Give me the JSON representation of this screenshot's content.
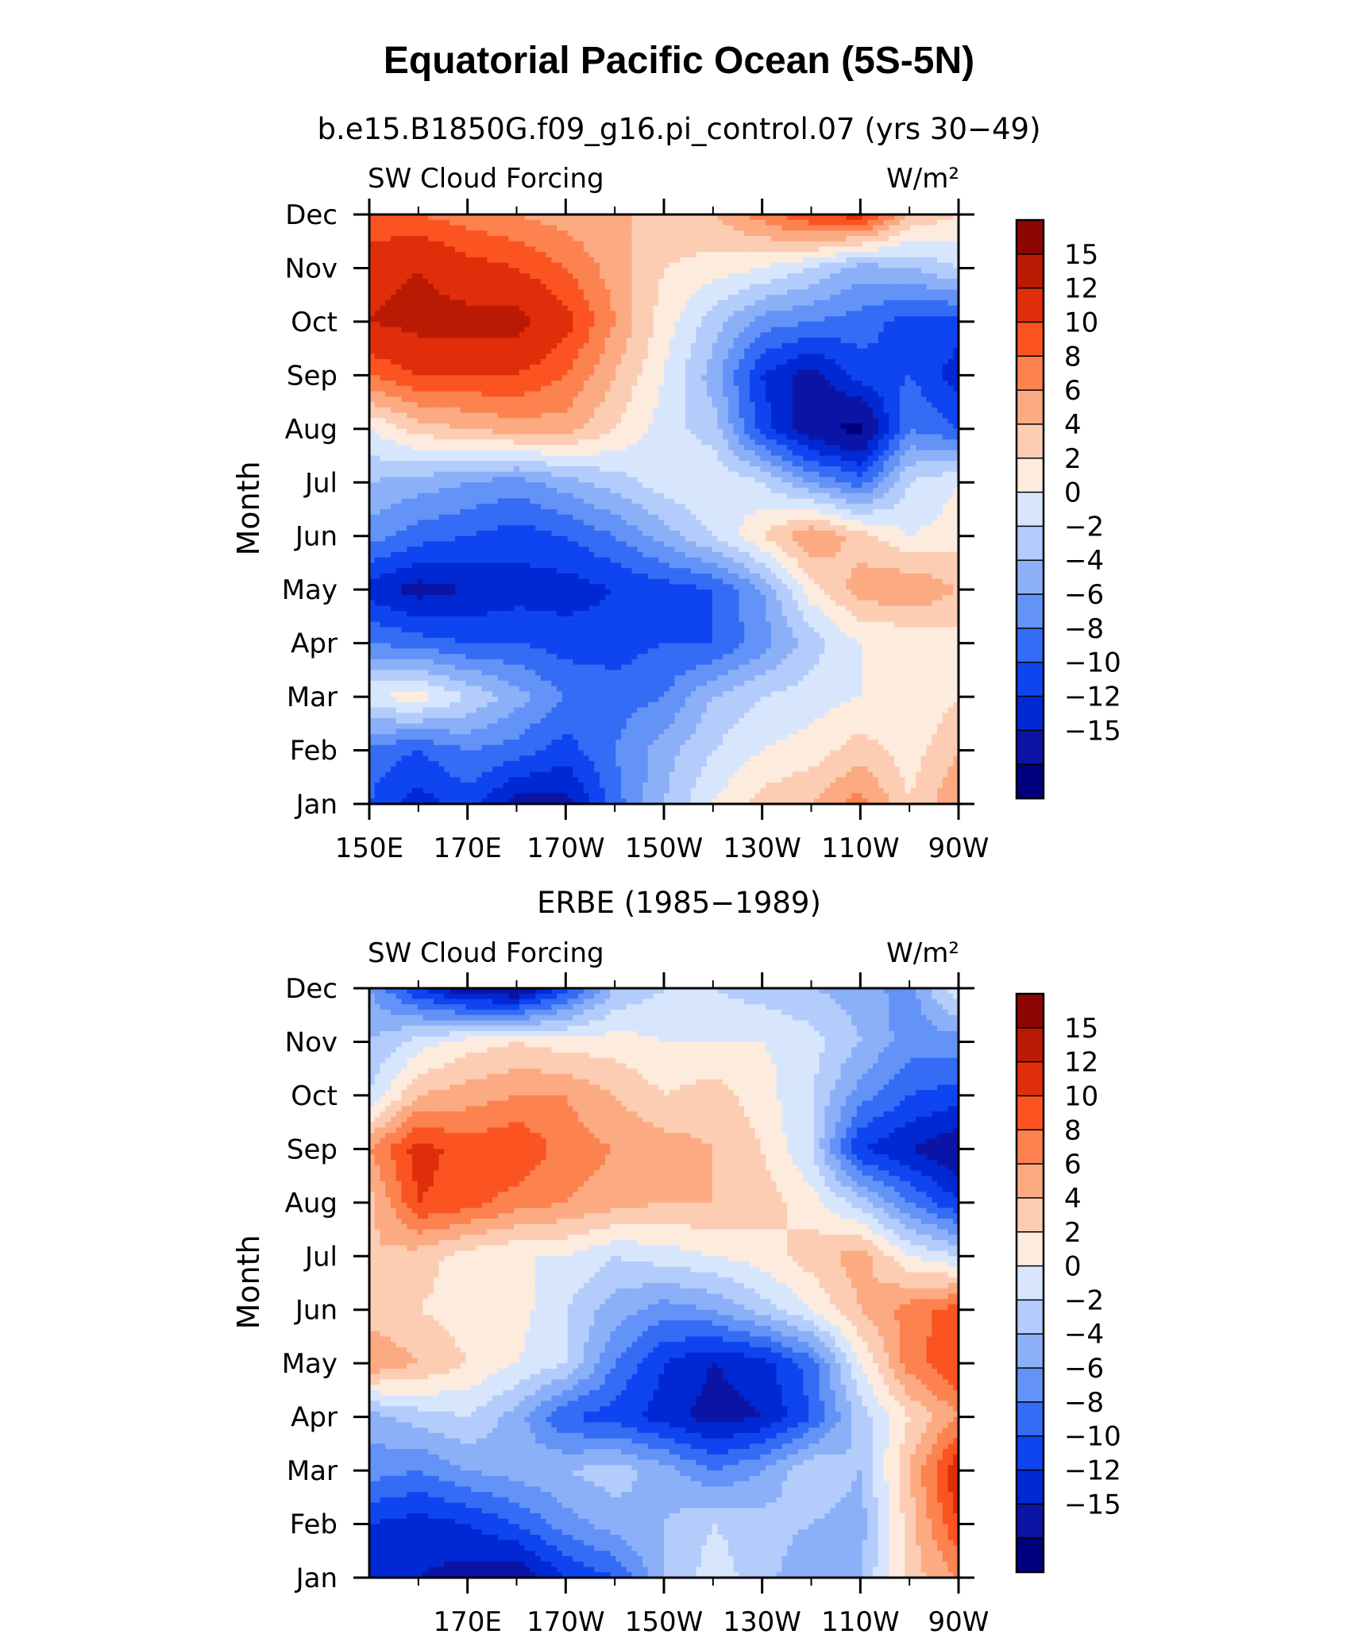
{
  "figure": {
    "title": "Equatorial Pacific Ocean (5S-5N)"
  },
  "chart_data": [
    {
      "type": "heatmap",
      "title": "b.e15.B1850G.f09_g16.pi_control.07 (yrs 30−49)",
      "left_label": "SW Cloud Forcing",
      "right_label": "W/m²",
      "ylabel": "Month",
      "x_ticks": [
        "150E",
        "170E",
        "170W",
        "150W",
        "130W",
        "110W",
        "90W"
      ],
      "x_tick_lon": [
        150,
        170,
        190,
        210,
        230,
        250,
        270
      ],
      "xlim": [
        150,
        270
      ],
      "y_ticks": [
        "Jan",
        "Feb",
        "Mar",
        "Apr",
        "May",
        "Jun",
        "Jul",
        "Aug",
        "Sep",
        "Oct",
        "Nov",
        "Dec"
      ],
      "colorbar": {
        "labels": [
          "15",
          "12",
          "10",
          "8",
          "6",
          "4",
          "2",
          "0",
          "−2",
          "−4",
          "−6",
          "−8",
          "−10",
          "−12",
          "−15"
        ]
      },
      "x_lon": [
        150,
        160,
        170,
        180,
        190,
        200,
        210,
        220,
        230,
        240,
        250,
        260,
        270
      ],
      "z": [
        [
          -8,
          -11,
          -9,
          -13,
          -13,
          -7,
          -2,
          2,
          5,
          6,
          9,
          4,
          8
        ],
        [
          -7,
          -8,
          -6,
          -7,
          -9,
          -6,
          -3,
          0,
          2,
          3,
          5,
          3,
          6
        ],
        [
          2,
          3,
          0,
          -3,
          -6,
          -7,
          -6,
          -2,
          0,
          1,
          2,
          2,
          4
        ],
        [
          -6,
          -7,
          -8,
          -8,
          -9,
          -9,
          -8,
          -8,
          -5,
          -1,
          2,
          2,
          3
        ],
        [
          -11,
          -13,
          -12,
          -11,
          -11,
          -10,
          -9,
          -8,
          -4,
          3,
          7,
          8,
          6
        ],
        [
          -5,
          -7,
          -8,
          -9,
          -8,
          -6,
          -3,
          0,
          4,
          8,
          5,
          2,
          3
        ],
        [
          -2,
          -3,
          -4,
          -5,
          -3,
          -1,
          1,
          2,
          0,
          -4,
          -7,
          0,
          2
        ],
        [
          2,
          5,
          6,
          7,
          7,
          4,
          1,
          -1,
          -9,
          -14,
          -16,
          -6,
          -8
        ],
        [
          10,
          12,
          12,
          12,
          10,
          6,
          2,
          -3,
          -10,
          -13,
          -9,
          -8,
          -11
        ],
        [
          15,
          16,
          16,
          16,
          13,
          8,
          3,
          -1,
          -5,
          -6,
          -7,
          -9,
          -9
        ],
        [
          14,
          15,
          13,
          12,
          10,
          7,
          4,
          3,
          2,
          0,
          -3,
          -2,
          0
        ],
        [
          10,
          10,
          9,
          8,
          7,
          6,
          6,
          6,
          9,
          12,
          13,
          6,
          4
        ]
      ]
    },
    {
      "type": "heatmap",
      "title": "ERBE (1985−1989)",
      "left_label": "SW Cloud Forcing",
      "right_label": "W/m²",
      "ylabel": "Month",
      "x_ticks": [
        "170E",
        "170W",
        "150W",
        "130W",
        "110W",
        "90W"
      ],
      "x_tick_lon": [
        170,
        190,
        210,
        230,
        250,
        270
      ],
      "xlim": [
        150,
        270
      ],
      "y_ticks": [
        "Jan",
        "Feb",
        "Mar",
        "Apr",
        "May",
        "Jun",
        "Jul",
        "Aug",
        "Sep",
        "Oct",
        "Nov",
        "Dec"
      ],
      "colorbar": {
        "labels": [
          "15",
          "12",
          "10",
          "8",
          "6",
          "4",
          "2",
          "0",
          "−2",
          "−4",
          "−6",
          "−8",
          "−10",
          "−12",
          "−15"
        ]
      },
      "x_lon": [
        150,
        160,
        170,
        180,
        190,
        200,
        210,
        220,
        230,
        240,
        250,
        260,
        270
      ],
      "z": [
        [
          -12,
          -12,
          -13,
          -14,
          -10,
          -8,
          -2,
          1,
          -1,
          -4,
          -2,
          5,
          8
        ],
        [
          -10,
          -11,
          -10,
          -8,
          -5,
          -3,
          -2,
          0,
          -1,
          -2,
          -3,
          5,
          12
        ],
        [
          -5,
          -6,
          -4,
          -3,
          -2,
          -1,
          -3,
          -6,
          -4,
          0,
          -2,
          6,
          14
        ],
        [
          -3,
          -1,
          0,
          -3,
          -8,
          -9,
          -11,
          -13,
          -12,
          -8,
          -1,
          4,
          8
        ],
        [
          8,
          6,
          4,
          2,
          0,
          -6,
          -10,
          -12,
          -11,
          -7,
          2,
          9,
          12
        ],
        [
          5,
          4,
          3,
          3,
          0,
          -3,
          -5,
          -4,
          -1,
          2,
          6,
          9,
          11
        ],
        [
          6,
          5,
          3,
          2,
          2,
          0,
          1,
          2,
          3,
          5,
          7,
          2,
          0
        ],
        [
          5,
          12,
          11,
          9,
          8,
          7,
          6,
          6,
          5,
          3,
          -1,
          -6,
          -10
        ],
        [
          8,
          13,
          11,
          12,
          9,
          8,
          7,
          6,
          4,
          0,
          -10,
          -12,
          -14
        ],
        [
          0,
          6,
          7,
          8,
          8,
          6,
          4,
          5,
          3,
          0,
          -5,
          -8,
          -9
        ],
        [
          -2,
          1,
          3,
          4,
          3,
          3,
          2,
          2,
          2,
          1,
          -2,
          -5,
          -5
        ],
        [
          -4,
          -10,
          -14,
          -15,
          -9,
          -2,
          0,
          0,
          -1,
          -2,
          -3,
          -5,
          2
        ]
      ]
    }
  ],
  "colors": {
    "levels": [
      "#00007f",
      "#0b14a5",
      "#0028d3",
      "#0f45f0",
      "#356cf5",
      "#6393f7",
      "#8cb0f8",
      "#b3ccfb",
      "#d7e6fd",
      "#fdebdd",
      "#fccdb3",
      "#fcaa82",
      "#fc8250",
      "#fb5421",
      "#e02e0a",
      "#ba1a04",
      "#8e0603"
    ]
  }
}
